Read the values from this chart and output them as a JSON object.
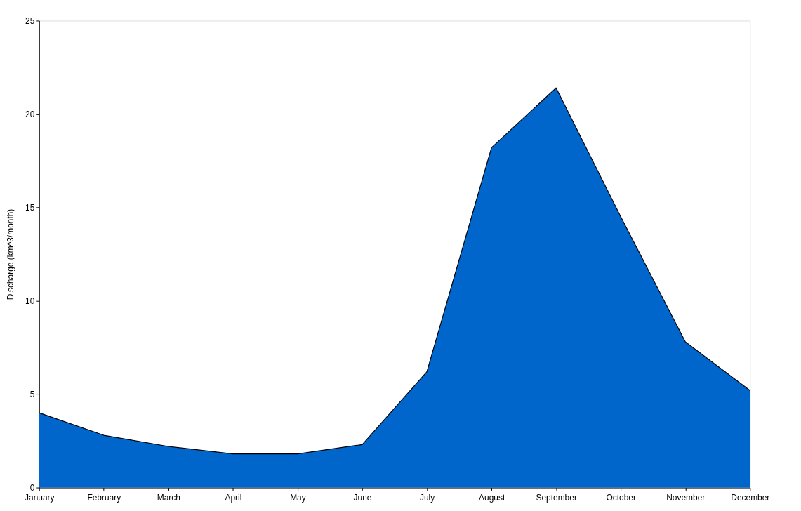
{
  "chart_data": {
    "type": "area",
    "ylabel": "Discharge (km^3/month)",
    "categories": [
      "January",
      "February",
      "March",
      "April",
      "May",
      "June",
      "July",
      "August",
      "September",
      "October",
      "November",
      "December"
    ],
    "series": [
      {
        "color": "#0066cc",
        "values": [
          4.0,
          2.8,
          2.2,
          1.8,
          1.8,
          2.3,
          6.2,
          18.2,
          21.4,
          14.5,
          7.8,
          5.2
        ]
      }
    ],
    "ylim": [
      0,
      25
    ],
    "yticks": [
      0,
      5,
      10,
      15,
      20,
      25
    ],
    "grid": false
  }
}
